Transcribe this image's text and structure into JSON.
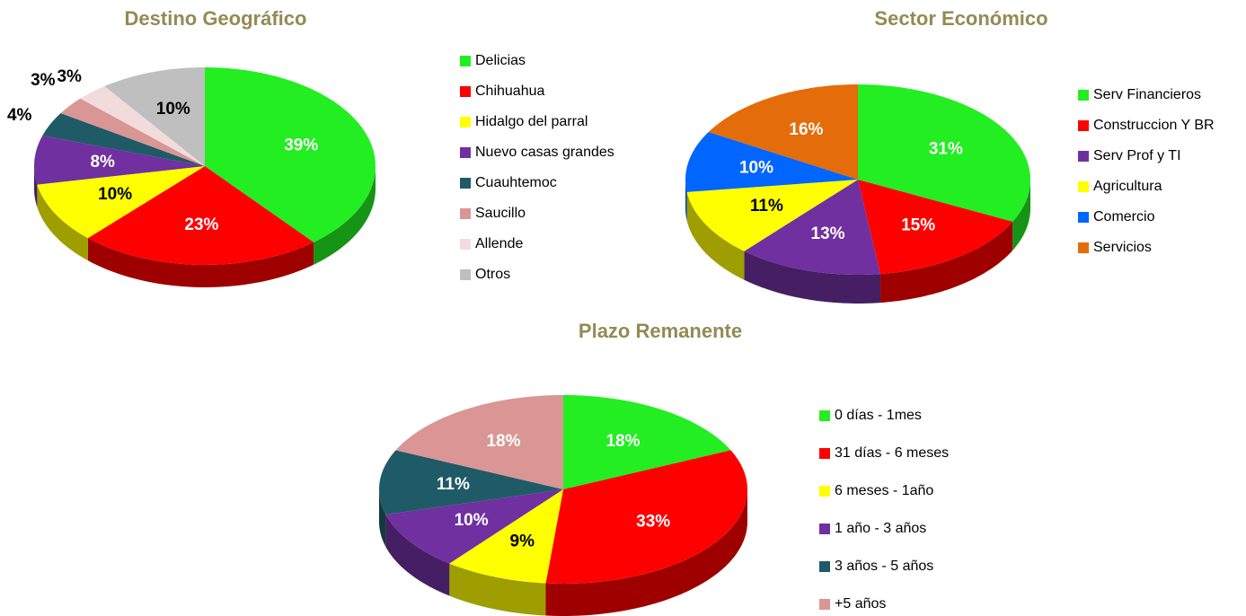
{
  "chart_data": [
    {
      "type": "pie",
      "title": "Destino Geográfico",
      "categories": [
        "Delicias",
        "Chihuahua",
        "Hidalgo del parral",
        "Nuevo casas grandes",
        "Cuauhtemoc",
        "Saucillo",
        "Allende",
        "Otros"
      ],
      "values": [
        39,
        23,
        10,
        8,
        4,
        3,
        3,
        10
      ],
      "value_labels": [
        "39%",
        "23%",
        "10%",
        "8%",
        "4%",
        "3%",
        "3%",
        "10%"
      ],
      "colors": [
        "#22ee22",
        "#ff0000",
        "#ffff00",
        "#7030a0",
        "#1f5b66",
        "#d99694",
        "#f2dcdb",
        "#bfbfbf"
      ]
    },
    {
      "type": "pie",
      "title": "Sector Económico",
      "categories": [
        "Serv Financieros",
        "Construccion Y BR",
        "Serv Prof y TI",
        "Agricultura",
        "Comercio",
        "Servicios"
      ],
      "values": [
        31,
        15,
        13,
        11,
        10,
        16
      ],
      "value_labels": [
        "31%",
        "15%",
        "13%",
        "11%",
        "10%",
        "16%"
      ],
      "colors": [
        "#22ee22",
        "#ff0000",
        "#7030a0",
        "#ffff00",
        "#0066ff",
        "#e46c0a"
      ]
    },
    {
      "type": "pie",
      "title": "Plazo Remanente",
      "categories": [
        "0 días - 1mes",
        "31 días - 6 meses",
        "6 meses - 1año",
        "1 año - 3 años",
        "3 años - 5 años",
        "+5 años"
      ],
      "values": [
        18,
        33,
        9,
        10,
        11,
        18
      ],
      "value_labels": [
        "18%",
        "33%",
        "9%",
        "10%",
        "11%",
        "18%"
      ],
      "colors": [
        "#22ee22",
        "#ff0000",
        "#ffff00",
        "#7030a0",
        "#1f5b66",
        "#d99694"
      ]
    }
  ]
}
